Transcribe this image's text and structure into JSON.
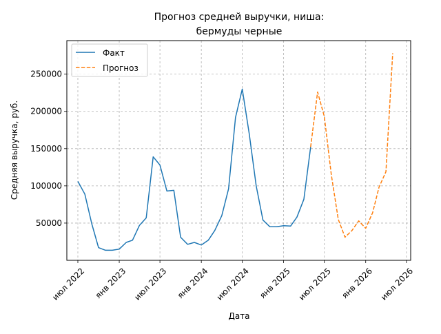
{
  "chart_data": {
    "type": "line",
    "title": "Прогноз средней выручки, ниша:\nбермуды черные",
    "title_lines": [
      "Прогноз средней выручки, ниша:",
      "бермуды черные"
    ],
    "xlabel": "Дата",
    "ylabel": "Средняя выручка, руб.",
    "ylim": [
      0,
      295000
    ],
    "xlim": [
      "2022-05-13",
      "2026-07-20"
    ],
    "y_ticks": [
      50000,
      100000,
      150000,
      200000,
      250000
    ],
    "y_tick_labels": [
      "50000",
      "100000",
      "150000",
      "200000",
      "250000"
    ],
    "x_ticks": [
      "2022-07-01",
      "2023-01-01",
      "2023-07-01",
      "2024-01-01",
      "2024-07-01",
      "2025-01-01",
      "2025-07-01",
      "2026-01-01",
      "2026-07-01"
    ],
    "x_tick_labels": [
      "июл 2022",
      "янв 2023",
      "июл 2023",
      "янв 2024",
      "июл 2024",
      "янв 2025",
      "июл 2025",
      "янв 2026",
      "июл 2026"
    ],
    "grid": true,
    "legend_position": "top-left",
    "series": [
      {
        "name": "Факт",
        "color": "#1f77b4",
        "style": "solid",
        "x": [
          "2022-07-01",
          "2022-08-01",
          "2022-09-01",
          "2022-10-01",
          "2022-11-01",
          "2022-12-01",
          "2023-01-01",
          "2023-02-01",
          "2023-03-01",
          "2023-04-01",
          "2023-05-01",
          "2023-06-01",
          "2023-07-01",
          "2023-08-01",
          "2023-09-01",
          "2023-10-01",
          "2023-11-01",
          "2023-12-01",
          "2024-01-01",
          "2024-02-01",
          "2024-03-01",
          "2024-04-01",
          "2024-05-01",
          "2024-06-01",
          "2024-07-01",
          "2024-08-01",
          "2024-09-01",
          "2024-10-01",
          "2024-11-01",
          "2024-12-01",
          "2025-01-01",
          "2025-02-01",
          "2025-03-01",
          "2025-04-01",
          "2025-05-01"
        ],
        "values": [
          106000,
          89000,
          49000,
          17000,
          13500,
          13500,
          15000,
          24000,
          27000,
          47000,
          57000,
          139000,
          128000,
          93000,
          94000,
          31000,
          21500,
          24000,
          20500,
          27000,
          40000,
          60000,
          96000,
          192000,
          230000,
          170000,
          100000,
          54000,
          45000,
          45000,
          46500,
          46000,
          58000,
          82000,
          152000
        ]
      },
      {
        "name": "Прогноз",
        "color": "#ff7f0e",
        "style": "dashed",
        "x": [
          "2025-05-01",
          "2025-06-01",
          "2025-07-01",
          "2025-08-01",
          "2025-09-01",
          "2025-10-01",
          "2025-11-01",
          "2025-12-01",
          "2026-01-01",
          "2026-02-01",
          "2026-03-01",
          "2026-04-01",
          "2026-05-01"
        ],
        "values": [
          152000,
          226000,
          193000,
          115000,
          55000,
          31000,
          40000,
          53000,
          43000,
          64000,
          98000,
          119000,
          278000
        ]
      }
    ]
  }
}
